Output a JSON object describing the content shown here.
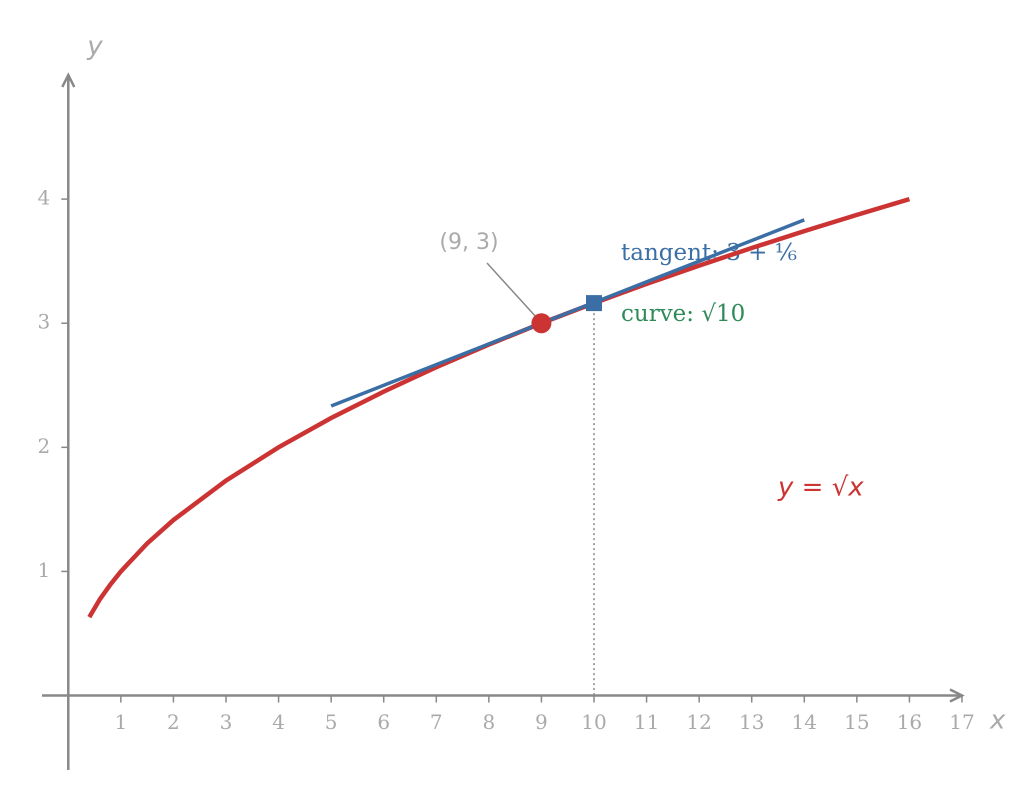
{
  "chart_data": {
    "type": "line",
    "x_label": "x",
    "y_label": "y",
    "xlim": [
      -0.5,
      17
    ],
    "ylim": [
      -0.6,
      5
    ],
    "xticks": [
      1,
      2,
      3,
      4,
      5,
      6,
      7,
      8,
      9,
      10,
      11,
      12,
      13,
      14,
      15,
      16,
      17
    ],
    "yticks": [
      1,
      2,
      3,
      4
    ],
    "series": [
      {
        "color": "#cc3333",
        "x": [
          0.4,
          0.6,
          0.8,
          1,
          1.5,
          2,
          3,
          4,
          5,
          6,
          7,
          8,
          9,
          10,
          11,
          12,
          13,
          14,
          15,
          16
        ],
        "values": [
          0.632,
          0.775,
          0.894,
          1,
          1.225,
          1.414,
          1.732,
          2,
          2.236,
          2.449,
          2.646,
          2.828,
          3,
          3.162,
          3.317,
          3.464,
          3.606,
          3.742,
          3.873,
          4
        ]
      },
      {
        "color": "#3a6ea5",
        "x": [
          5,
          14
        ],
        "values": [
          2.333,
          3.833
        ]
      }
    ],
    "points": [
      {
        "x": 9,
        "y": 3,
        "color": "#cc3333",
        "marker": "circle"
      },
      {
        "x": 10,
        "y": 3.162,
        "color": "#3a6ea5",
        "marker": "square"
      }
    ],
    "point_label": "(9, 3)",
    "tangent_label": "tangent: 3 + ⅙",
    "curve_label": "curve: √10",
    "equation": "y = √x"
  }
}
